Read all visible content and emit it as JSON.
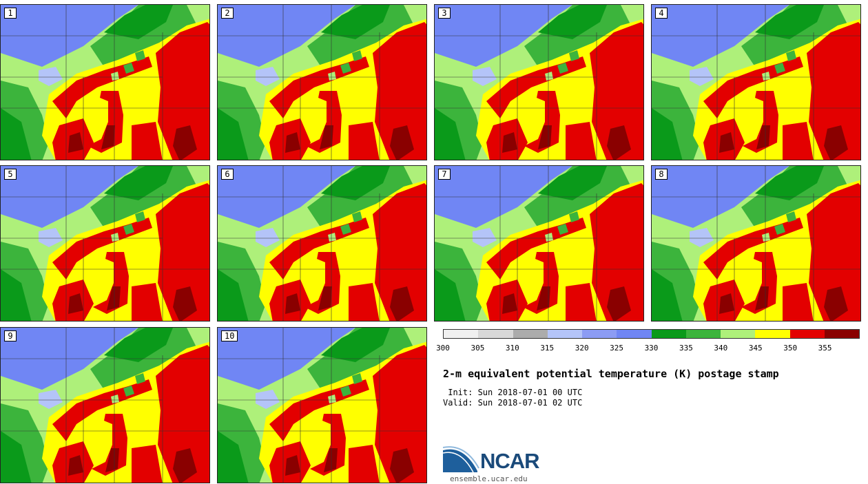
{
  "panels": [
    {
      "label": "1"
    },
    {
      "label": "2"
    },
    {
      "label": "3"
    },
    {
      "label": "4"
    },
    {
      "label": "5"
    },
    {
      "label": "6"
    },
    {
      "label": "7"
    },
    {
      "label": "8"
    },
    {
      "label": "9"
    },
    {
      "label": "10"
    }
  ],
  "colorbar": {
    "ticks": [
      "300",
      "305",
      "310",
      "315",
      "320",
      "325",
      "330",
      "335",
      "340",
      "345",
      "350",
      "355"
    ],
    "colors": [
      "#f0f0f0",
      "#d8d8d8",
      "#acacac",
      "#b4c4f8",
      "#8c9cf4",
      "#7086f4",
      "#0a9a1a",
      "#3cb43c",
      "#aef07a",
      "#ffff00",
      "#e30000",
      "#8a0000"
    ]
  },
  "title": "2-m equivalent potential temperature (K) postage stamp",
  "init": " Init: Sun 2018-07-01 00 UTC",
  "valid": "Valid: Sun 2018-07-01 02 UTC",
  "logo": {
    "text": "NCAR",
    "url": "ensemble.ucar.edu"
  },
  "field_colors": {
    "cool": "#7086f4",
    "green_dark": "#0a9a1a",
    "green": "#3cb43c",
    "green_light": "#aef07a",
    "yellow": "#ffff00",
    "red": "#e30000",
    "dark_red": "#8a0000",
    "light_blue": "#b4c4f8"
  }
}
